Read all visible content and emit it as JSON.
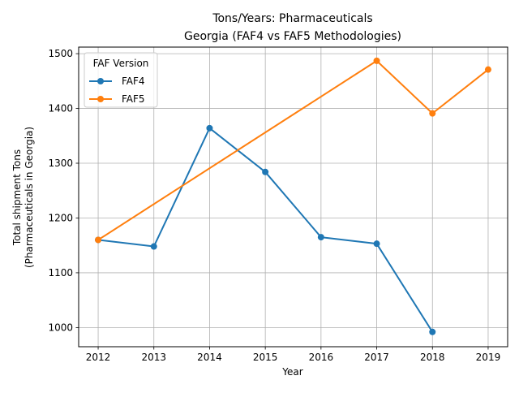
{
  "chart_data": {
    "type": "line",
    "title_line1": "Tons/Years: Pharmaceuticals",
    "title_line2": "Georgia (FAF4 vs FAF5 Methodologies)",
    "xlabel": "Year",
    "ylabel_line1": "Total shipment Tons",
    "ylabel_line2": "(Pharmaceuticals in Georgia)",
    "x_ticks": [
      2012,
      2013,
      2014,
      2015,
      2016,
      2017,
      2018,
      2019
    ],
    "y_ticks": [
      1000,
      1100,
      1200,
      1300,
      1400,
      1500
    ],
    "xlim": [
      2011.65,
      2019.35
    ],
    "ylim": [
      965,
      1512
    ],
    "grid": true,
    "legend": {
      "title": "FAF Version",
      "placement": "top-left"
    },
    "series": [
      {
        "name": "FAF4",
        "color": "#1f77b4",
        "x": [
          2012,
          2013,
          2014,
          2015,
          2016,
          2017,
          2018
        ],
        "values": [
          1160,
          1148,
          1364,
          1284,
          1165,
          1153,
          992
        ]
      },
      {
        "name": "FAF5",
        "color": "#ff7f0e",
        "x": [
          2012,
          2017,
          2018,
          2019
        ],
        "values": [
          1160,
          1487,
          1391,
          1471
        ]
      }
    ]
  }
}
